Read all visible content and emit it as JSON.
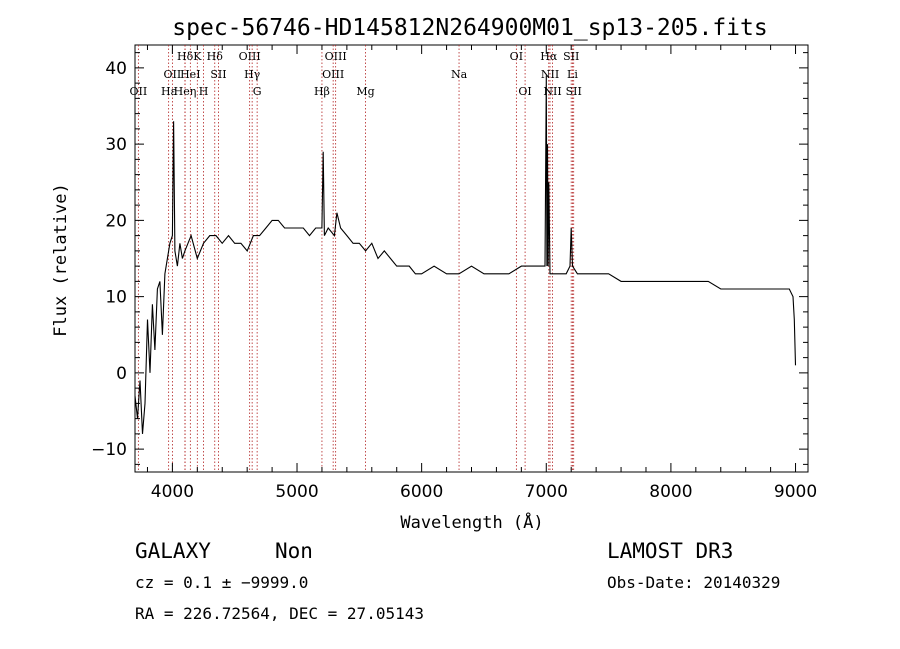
{
  "chart_data": {
    "type": "line",
    "title": "spec-56746-HD145812N264900M01_sp13-205.fits",
    "xlabel": "Wavelength (Å)",
    "ylabel": "Flux (relative)",
    "xlim": [
      3700,
      9100
    ],
    "ylim": [
      -13,
      43
    ],
    "x_ticks": [
      4000,
      5000,
      6000,
      7000,
      8000,
      9000
    ],
    "y_ticks": [
      -10,
      0,
      10,
      20,
      30,
      40
    ],
    "x_tick_labels": [
      "4000",
      "5000",
      "6000",
      "7000",
      "8000",
      "9000"
    ],
    "y_tick_labels": [
      "−10",
      "0",
      "10",
      "20",
      "30",
      "40"
    ],
    "grid": false,
    "series": [
      {
        "x": [
          3700,
          3720,
          3740,
          3760,
          3780,
          3800,
          3820,
          3840,
          3860,
          3880,
          3900,
          3920,
          3940,
          3960,
          3980,
          4000,
          4010,
          4020,
          4040,
          4060,
          4080,
          4100,
          4150,
          4200,
          4250,
          4300,
          4350,
          4400,
          4450,
          4500,
          4550,
          4600,
          4650,
          4700,
          4750,
          4800,
          4850,
          4900,
          4950,
          5000,
          5050,
          5100,
          5150,
          5200,
          5210,
          5220,
          5250,
          5300,
          5320,
          5350,
          5400,
          5450,
          5500,
          5550,
          5600,
          5650,
          5700,
          5750,
          5800,
          5850,
          5900,
          5950,
          6000,
          6100,
          6200,
          6300,
          6400,
          6500,
          6600,
          6700,
          6800,
          6900,
          6990,
          7000,
          7005,
          7010,
          7015,
          7020,
          7030,
          7040,
          7050,
          7080,
          7120,
          7160,
          7190,
          7200,
          7210,
          7250,
          7300,
          7400,
          7500,
          7600,
          7700,
          7800,
          7900,
          8000,
          8100,
          8200,
          8300,
          8400,
          8500,
          8600,
          8700,
          8800,
          8900,
          8950,
          8980,
          8990,
          9000
        ],
        "y": [
          -3,
          -6,
          -1,
          -8,
          -4,
          7,
          0,
          9,
          3,
          11,
          12,
          5,
          13,
          15,
          17,
          18,
          33,
          16,
          14,
          17,
          15,
          16,
          18,
          15,
          17,
          18,
          18,
          17,
          18,
          17,
          17,
          16,
          18,
          18,
          19,
          20,
          20,
          19,
          19,
          19,
          19,
          18,
          19,
          19,
          29,
          18,
          19,
          18,
          21,
          19,
          18,
          17,
          17,
          16,
          17,
          15,
          16,
          15,
          14,
          14,
          14,
          13,
          13,
          14,
          13,
          13,
          14,
          13,
          13,
          13,
          14,
          14,
          14,
          39,
          14,
          30,
          14,
          25,
          13,
          13,
          13,
          13,
          13,
          13,
          14,
          19,
          14,
          13,
          13,
          13,
          13,
          12,
          12,
          12,
          12,
          12,
          12,
          12,
          12,
          11,
          11,
          11,
          11,
          11,
          11,
          11,
          10,
          7,
          1
        ]
      }
    ],
    "lines": [
      {
        "wave": 3727,
        "label": "OII",
        "row": 2
      },
      {
        "wave": 3970,
        "label": "Hε",
        "row": 2
      },
      {
        "wave": 4000,
        "label": "OII",
        "row": 1
      },
      {
        "wave": 4102,
        "label": "Hδ",
        "row": 0
      },
      {
        "wave": 4101,
        "label": "Heη",
        "row": 2
      },
      {
        "wave": 4144,
        "label": "HeI",
        "row": 1
      },
      {
        "wave": 4200,
        "label": "K",
        "row": 0
      },
      {
        "wave": 4250,
        "label": "H",
        "row": 2
      },
      {
        "wave": 4340,
        "label": "Hδ",
        "row": 0
      },
      {
        "wave": 4370,
        "label": "SII",
        "row": 1
      },
      {
        "wave": 4620,
        "label": "OIII",
        "row": 0
      },
      {
        "wave": 4640,
        "label": "Hγ",
        "row": 1
      },
      {
        "wave": 4680,
        "label": "G",
        "row": 2
      },
      {
        "wave": 5200,
        "label": "Hβ",
        "row": 2
      },
      {
        "wave": 5310,
        "label": "OIII",
        "row": 0
      },
      {
        "wave": 5290,
        "label": "OIII",
        "row": 1
      },
      {
        "wave": 5550,
        "label": "Mg",
        "row": 2
      },
      {
        "wave": 6300,
        "label": "Na",
        "row": 1
      },
      {
        "wave": 6760,
        "label": "OI",
        "row": 0
      },
      {
        "wave": 6830,
        "label": "OI",
        "row": 2
      },
      {
        "wave": 7020,
        "label": "Hα",
        "row": 0
      },
      {
        "wave": 7030,
        "label": "NII",
        "row": 1
      },
      {
        "wave": 7050,
        "label": "NII",
        "row": 2
      },
      {
        "wave": 7200,
        "label": "SII",
        "row": 0
      },
      {
        "wave": 7210,
        "label": "Li",
        "row": 1
      },
      {
        "wave": 7220,
        "label": "SII",
        "row": 2
      }
    ],
    "line_color": "#b22222"
  },
  "footer": {
    "class_label": "GALAXY",
    "subclass_label": "Non",
    "cz": "cz = 0.1 ± −9999.0",
    "radec": "RA = 226.72564, DEC =  27.05143",
    "survey": "LAMOST DR3",
    "obs_date": "Obs-Date: 20140329"
  }
}
